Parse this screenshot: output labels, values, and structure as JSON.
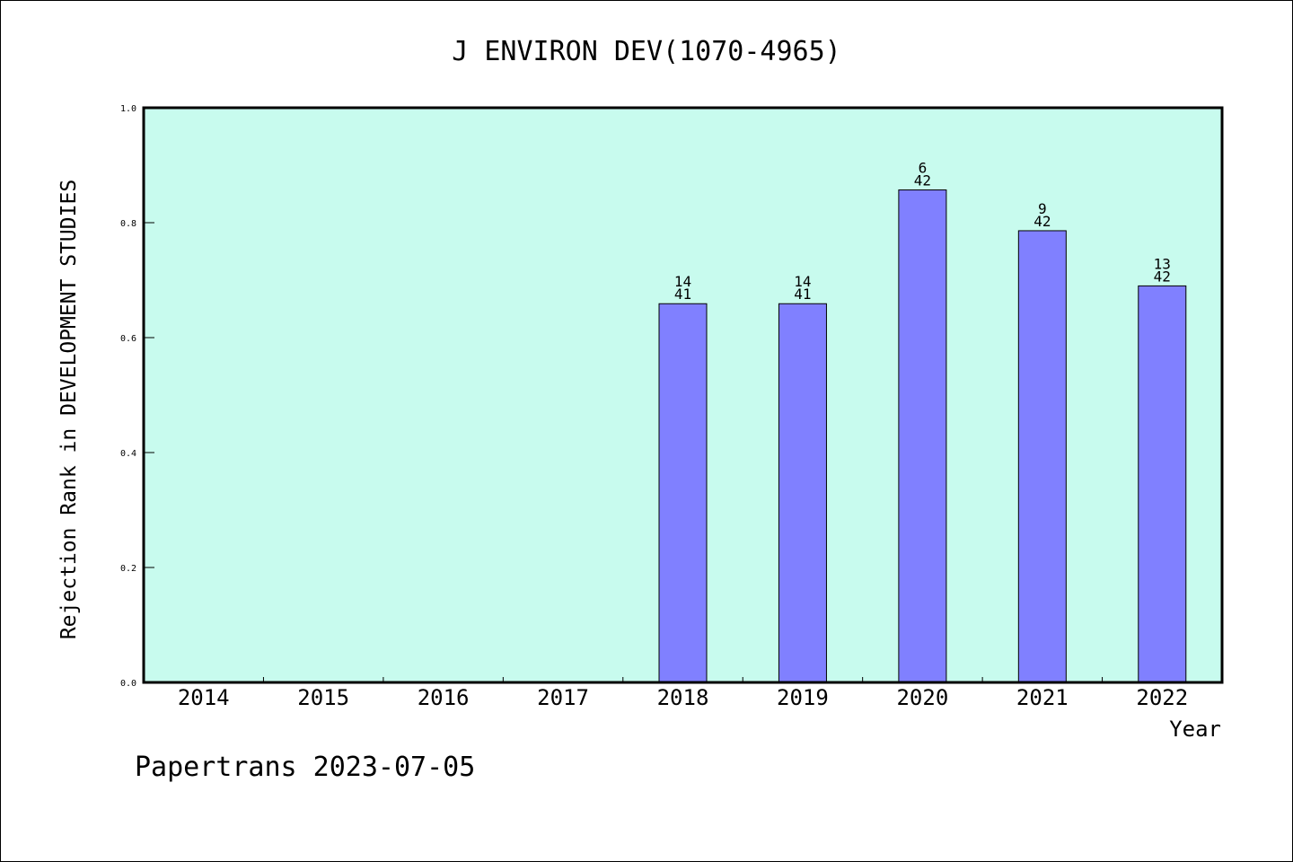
{
  "chart_data": {
    "type": "bar",
    "title": "J ENVIRON DEV(1070-4965)",
    "ylabel": "Rejection Rank in DEVELOPMENT STUDIES",
    "xlabel": "Year",
    "categories": [
      "2014",
      "2015",
      "2016",
      "2017",
      "2018",
      "2019",
      "2020",
      "2021",
      "2022"
    ],
    "values": [
      null,
      null,
      null,
      null,
      0.659,
      0.659,
      0.857,
      0.786,
      0.69
    ],
    "annotations": [
      null,
      null,
      null,
      null,
      {
        "top": "14",
        "bottom": "41"
      },
      {
        "top": "14",
        "bottom": "41"
      },
      {
        "top": "6",
        "bottom": "42"
      },
      {
        "top": "9",
        "bottom": "42"
      },
      {
        "top": "13",
        "bottom": "42"
      }
    ],
    "ylim": [
      0,
      1
    ],
    "yticks": [
      "0.0",
      "0.2",
      "0.4",
      "0.6",
      "0.8",
      "1.0"
    ],
    "grid": false,
    "legend": "none",
    "colors": {
      "plot_background": "#c8fbee",
      "bar_fill": "#8080ff",
      "bar_stroke": "#000000"
    }
  },
  "footer": "Papertrans 2023-07-05"
}
